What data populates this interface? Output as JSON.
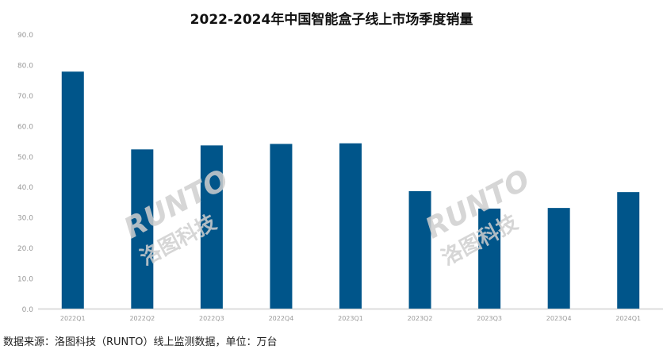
{
  "chart_data": {
    "type": "bar",
    "title": "2022-2024年中国智能盒子线上市场季度销量",
    "categories": [
      "2022Q1",
      "2022Q2",
      "2022Q3",
      "2022Q4",
      "2023Q1",
      "2023Q2",
      "2023Q3",
      "2023Q4",
      "2024Q1"
    ],
    "values": [
      77.7,
      52.2,
      53.5,
      54.0,
      54.2,
      38.5,
      32.8,
      33.0,
      38.2
    ],
    "ylim": [
      0,
      90
    ],
    "yticks": [
      "0.0",
      "10.0",
      "20.0",
      "30.0",
      "40.0",
      "50.0",
      "60.0",
      "70.0",
      "80.0",
      "90.0"
    ],
    "grid": false,
    "bar_color": "#00558a",
    "xlabel": "",
    "ylabel": ""
  },
  "source": "数据来源：洛图科技（RUNTO）线上监测数据，单位：万台",
  "watermark": {
    "latin": "RUNTO",
    "chinese": "洛图科技"
  }
}
